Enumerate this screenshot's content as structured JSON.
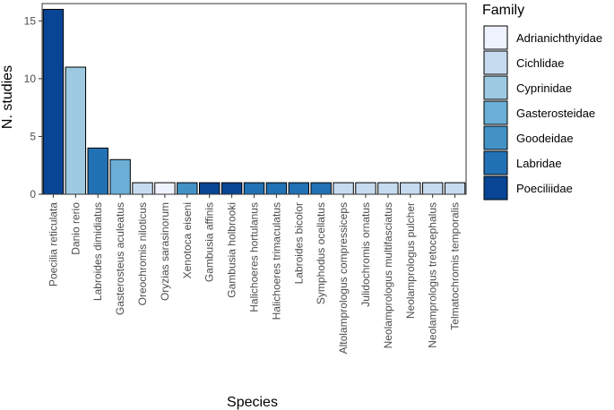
{
  "chart_data": {
    "type": "bar",
    "title": "",
    "xlabel": "Species",
    "ylabel": "N. studies",
    "ylim": [
      0,
      16.5
    ],
    "yticks": [
      0,
      5,
      10,
      15
    ],
    "grid": false,
    "legend_title": "Family",
    "legend_position": "right",
    "families": [
      {
        "name": "Adrianichthyidae",
        "color": "#eff3ff"
      },
      {
        "name": "Cichlidae",
        "color": "#c6dbef"
      },
      {
        "name": "Cyprinidae",
        "color": "#9ecae1"
      },
      {
        "name": "Gasterosteidae",
        "color": "#6baed6"
      },
      {
        "name": "Goodeidae",
        "color": "#4292c6"
      },
      {
        "name": "Labridae",
        "color": "#2171b5"
      },
      {
        "name": "Poeciliidae",
        "color": "#084594"
      }
    ],
    "categories": [
      "Poecilia reticulata",
      "Danio rerio",
      "Labroides dimidiatus",
      "Gasterosteus aculeatus",
      "Oreochromis niloticus",
      "Oryzias sarasinorum",
      "Xenotoca eiseni",
      "Gambusia affinis",
      "Gambusia holbrooki",
      "Halichoeres hortulanus",
      "Halichoeres trimaculatus",
      "Labroides bicolor",
      "Symphodus ocellatus",
      "Altolamprologus compressiceps",
      "Julidochromis ornatus",
      "Neolamprologus multifasciatus",
      "Neolamprologus pulcher",
      "Neolamprologus tretocephalus",
      "Telmatochromis temporalis"
    ],
    "values": [
      16,
      11,
      4,
      3,
      1,
      1,
      1,
      1,
      1,
      1,
      1,
      1,
      1,
      1,
      1,
      1,
      1,
      1,
      1
    ],
    "family_of": [
      "Poeciliidae",
      "Cyprinidae",
      "Labridae",
      "Gasterosteidae",
      "Cichlidae",
      "Adrianichthyidae",
      "Goodeidae",
      "Poeciliidae",
      "Poeciliidae",
      "Labridae",
      "Labridae",
      "Labridae",
      "Labridae",
      "Cichlidae",
      "Cichlidae",
      "Cichlidae",
      "Cichlidae",
      "Cichlidae",
      "Cichlidae"
    ]
  }
}
